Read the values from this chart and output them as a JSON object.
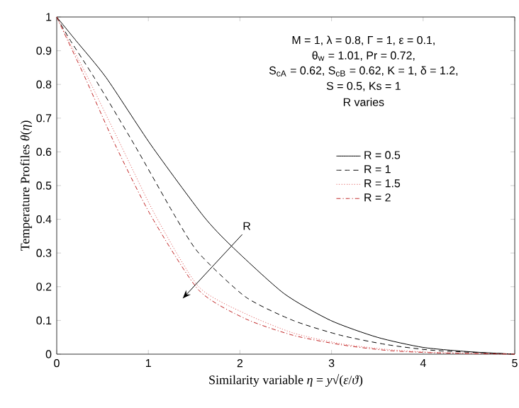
{
  "chart_data": {
    "type": "line",
    "xlabel": "Similarity variable *η* = *y*√(*ε*/*ϑ*)",
    "ylabel": "Temperature Profiles *θ*(*η*)",
    "xlim": [
      0,
      5
    ],
    "ylim": [
      0,
      1
    ],
    "xticks": [
      0,
      1,
      2,
      3,
      4,
      5
    ],
    "yticks": [
      0,
      0.1,
      0.2,
      0.3,
      0.4,
      0.5,
      0.6,
      0.7,
      0.8,
      0.9,
      1
    ],
    "legend": "right",
    "grid": false,
    "marker": "none",
    "series": [
      {
        "name": "R = 0.5",
        "color": "#000000",
        "line_style": "solid",
        "x": [
          0,
          0.21,
          0.54,
          1.03,
          1.6,
          1.91,
          2.48,
          2.99,
          3.5,
          4.0,
          4.52,
          5
        ],
        "values": [
          1,
          0.93,
          0.82,
          0.62,
          0.41,
          0.32,
          0.18,
          0.1,
          0.05,
          0.02,
          0.007,
          0
        ]
      },
      {
        "name": "R = 1",
        "color": "#000000",
        "line_style": "dashed",
        "x": [
          0,
          0.15,
          0.41,
          0.85,
          1.29,
          1.55,
          2.06,
          2.58,
          3.1,
          3.61,
          4.13,
          5
        ],
        "values": [
          1,
          0.93,
          0.82,
          0.62,
          0.41,
          0.3,
          0.17,
          0.1,
          0.056,
          0.028,
          0.011,
          0
        ]
      },
      {
        "name": "R = 1.5",
        "color": "#e06060",
        "line_style": "dotted",
        "x": [
          0,
          0.13,
          0.34,
          0.7,
          1.08,
          1.55,
          2.06,
          2.58,
          3.1,
          3.61,
          4.13,
          5
        ],
        "values": [
          1,
          0.93,
          0.82,
          0.62,
          0.41,
          0.2,
          0.12,
          0.063,
          0.031,
          0.014,
          0.005,
          0
        ]
      },
      {
        "name": "R = 2",
        "color": "#c02020",
        "line_style": "dashdot",
        "x": [
          0,
          0.12,
          0.31,
          0.64,
          1.03,
          1.55,
          2.06,
          2.58,
          3.1,
          3.61,
          4.13,
          5
        ],
        "values": [
          1,
          0.93,
          0.82,
          0.62,
          0.41,
          0.19,
          0.105,
          0.056,
          0.028,
          0.011,
          0.004,
          0
        ]
      }
    ],
    "annotations": [
      "M = 1, λ = 0.8, Γ = 1, ε = 0.1,",
      "θ$_{w}$ = 1.01, Pr = 0.72,",
      "S$_{cA}$ = 0.62, S$_{cB}$ = 0.62,  K = 1, δ = 1.2,",
      "S = 0.5, Ks = 1",
      "R varies",
      "R"
    ]
  }
}
